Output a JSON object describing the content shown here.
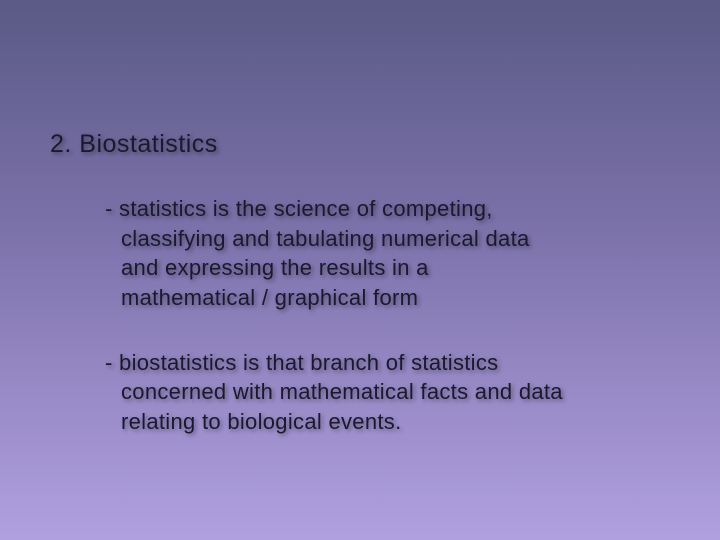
{
  "slide": {
    "background_gradient": [
      "#5a5a85",
      "#7a70a8",
      "#9a8cc8",
      "#b0a0e0"
    ],
    "text_color": "#1a1a2e",
    "shadow_color": "rgba(0,0,0,0.4)",
    "heading": "2.   Biostatistics",
    "heading_fontsize": 25,
    "point1_line1": "-  statistics  is  the  science  of  competing,",
    "point1_line2": "classifying  and  tabulating  numerical data",
    "point1_line3": "and  expressing  the  results  in  a",
    "point1_line4": "mathematical / graphical  form",
    "point2_line1": "-  biostatistics  is  that  branch  of  statistics",
    "point2_line2": "concerned  with  mathematical  facts  and  data",
    "point2_line3": "relating  to  biological  events.",
    "body_fontsize": 22
  }
}
